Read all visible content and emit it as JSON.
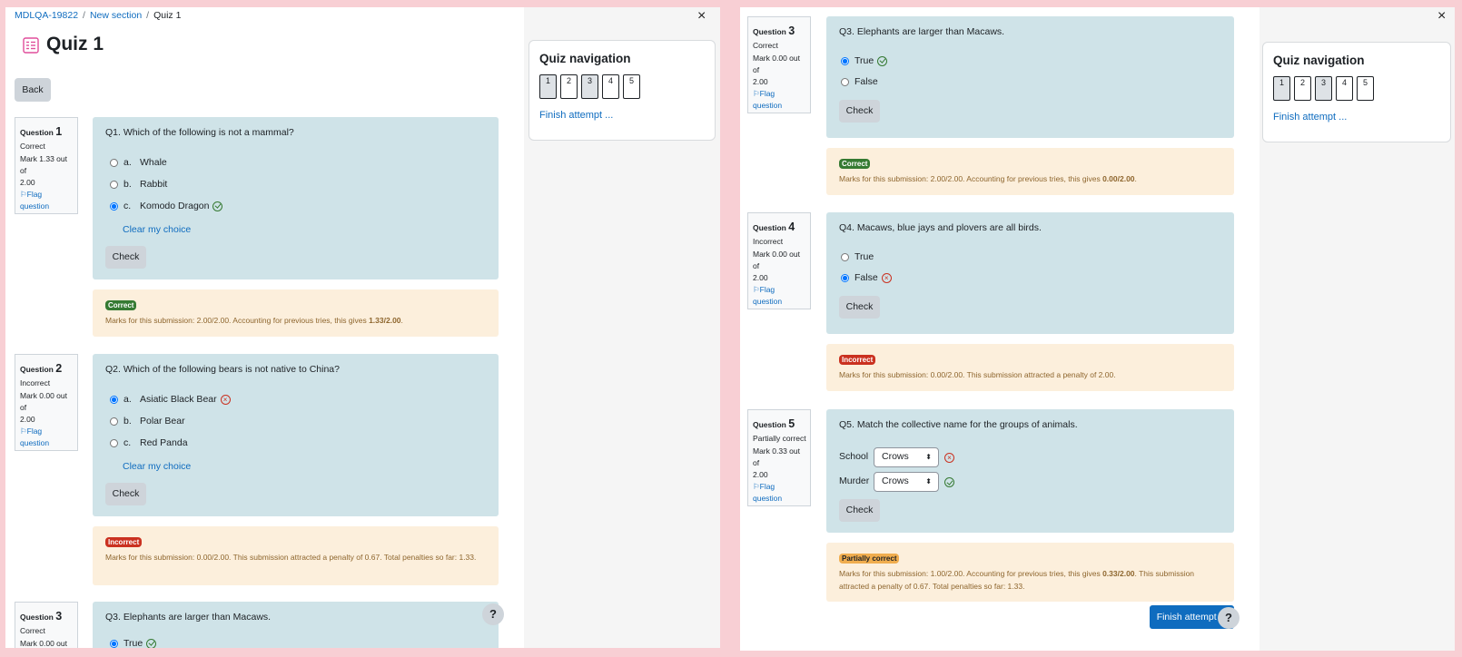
{
  "breadcrumb": {
    "course": "MDLQA-19822",
    "section": "New section",
    "current": "Quiz 1"
  },
  "quiz": {
    "title": "Quiz 1",
    "back": "Back",
    "finish": "Finish attempt ..."
  },
  "nav": {
    "title": "Quiz navigation",
    "buttons": [
      "1",
      "2",
      "3",
      "4",
      "5"
    ],
    "finish_link": "Finish attempt ...",
    "close": "×"
  },
  "help": "?",
  "labels": {
    "question": "Question",
    "flag1": "Flag",
    "flag2": "question",
    "check": "Check",
    "clear": "Clear my choice"
  },
  "questions": [
    {
      "num": "1",
      "state": "Correct",
      "mark1": "Mark 1.33 out of",
      "mark2": "2.00",
      "text": "Q1. Which of the following is not a mammal?",
      "options": [
        {
          "letter": "a.",
          "text": "Whale"
        },
        {
          "letter": "b.",
          "text": "Rabbit"
        },
        {
          "letter": "c.",
          "text": "Komodo Dragon"
        }
      ],
      "badge": "Correct",
      "feedback_pre": "Marks for this submission: 2.00/2.00. Accounting for previous tries, this gives ",
      "feedback_bold": "1.33/2.00",
      "feedback_post": "."
    },
    {
      "num": "2",
      "state": "Incorrect",
      "mark1": "Mark 0.00 out of",
      "mark2": "2.00",
      "text": "Q2. Which of the following bears is not native to China?",
      "options": [
        {
          "letter": "a.",
          "text": "Asiatic Black Bear"
        },
        {
          "letter": "b.",
          "text": "Polar Bear"
        },
        {
          "letter": "c.",
          "text": "Red Panda"
        }
      ],
      "badge": "Incorrect",
      "feedback": "Marks for this submission: 0.00/2.00. This submission attracted a penalty of 0.67. Total penalties so far: 1.33."
    },
    {
      "num": "3",
      "state": "Correct",
      "mark1": "Mark 0.00 out of",
      "mark2": "2.00",
      "text": "Q3. Elephants are larger than Macaws.",
      "options": [
        {
          "text": "True"
        },
        {
          "text": "False"
        }
      ],
      "badge": "Correct",
      "feedback_pre": "Marks for this submission: 2.00/2.00. Accounting for previous tries, this gives ",
      "feedback_bold": "0.00/2.00",
      "feedback_post": "."
    },
    {
      "num": "4",
      "state": "Incorrect",
      "mark1": "Mark 0.00 out of",
      "mark2": "2.00",
      "text": "Q4. Macaws, blue jays and plovers are all birds.",
      "options": [
        {
          "text": "True"
        },
        {
          "text": "False"
        }
      ],
      "badge": "Incorrect",
      "feedback": "Marks for this submission: 0.00/2.00. This submission attracted a penalty of 2.00."
    },
    {
      "num": "5",
      "state": "Partially correct",
      "mark1": "Mark 0.33 out of",
      "mark2": "2.00",
      "text": "Q5. Match the collective name for the groups of animals.",
      "matches": [
        {
          "label": "School",
          "value": "Crows"
        },
        {
          "label": "Murder",
          "value": "Crows"
        }
      ],
      "badge": "Partially correct",
      "feedback_pre": "Marks for this submission: 1.00/2.00. Accounting for previous tries, this gives ",
      "feedback_bold": "0.33/2.00",
      "feedback_post": ". This submission attracted a penalty of 0.67. Total penalties so far: 1.33."
    }
  ]
}
